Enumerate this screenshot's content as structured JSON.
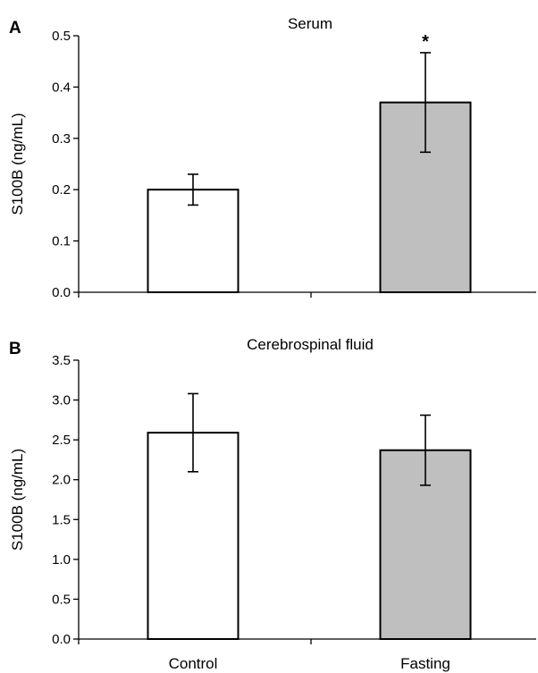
{
  "chart_data": [
    {
      "type": "bar",
      "panel_label": "A",
      "title": "Serum",
      "xlabel": "",
      "ylabel": "S100B (ng/mL)",
      "ylim": [
        0,
        0.5
      ],
      "yticks": [
        "0.0",
        "0.1",
        "0.2",
        "0.3",
        "0.4",
        "0.5"
      ],
      "categories": [
        "Control",
        "Fasting"
      ],
      "show_category_labels": false,
      "values": [
        0.2,
        0.37
      ],
      "errors": [
        0.03,
        0.097
      ],
      "bar_colors": [
        "#ffffff",
        "#bfbfbf"
      ],
      "annotations": [
        "",
        "*"
      ],
      "grid": false,
      "legend": "none"
    },
    {
      "type": "bar",
      "panel_label": "B",
      "title": "Cerebrospinal fluid",
      "xlabel": "",
      "ylabel": "S100B (ng/mL)",
      "ylim": [
        0,
        3.5
      ],
      "yticks": [
        "0.0",
        "0.5",
        "1.0",
        "1.5",
        "2.0",
        "2.5",
        "3.0",
        "3.5"
      ],
      "categories": [
        "Control",
        "Fasting"
      ],
      "show_category_labels": true,
      "values": [
        2.59,
        2.37
      ],
      "errors": [
        0.49,
        0.44
      ],
      "bar_colors": [
        "#ffffff",
        "#bfbfbf"
      ],
      "annotations": [
        "",
        ""
      ],
      "grid": false,
      "legend": "none"
    }
  ]
}
